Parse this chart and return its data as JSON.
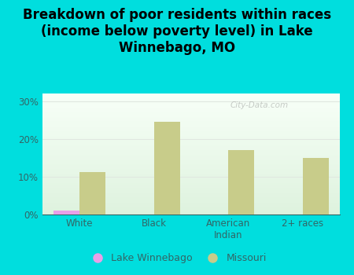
{
  "title": "Breakdown of poor residents within races\n(income below poverty level) in Lake\nWinnebago, MO",
  "categories": [
    "White",
    "Black",
    "American\nIndian",
    "2+ races"
  ],
  "lake_winnebago": [
    1.0,
    0.0,
    0.0,
    0.0
  ],
  "missouri": [
    11.2,
    24.5,
    17.0,
    15.0
  ],
  "lw_color": "#e8a0e8",
  "mo_color": "#c8cc8a",
  "background_color": "#00dede",
  "ylim": [
    0,
    32
  ],
  "yticks": [
    0,
    10,
    20,
    30
  ],
  "bar_width": 0.35,
  "title_fontsize": 12,
  "tick_fontsize": 8.5,
  "legend_label_lw": "Lake Winnebago",
  "legend_label_mo": "Missouri",
  "watermark": "City-Data.com",
  "tick_color": "#336666",
  "grid_color": "#e0e8e0"
}
